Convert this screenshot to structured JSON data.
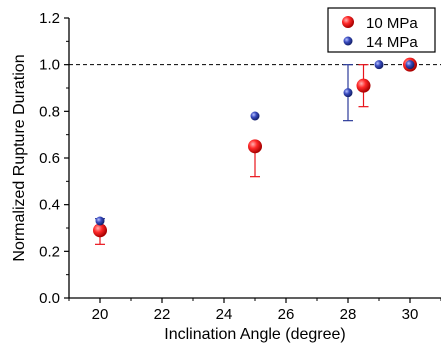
{
  "chart_data": {
    "type": "scatter",
    "xlabel": "Inclination Angle (degree)",
    "ylabel": "Normalized Rupture Duration",
    "xlim": [
      19,
      31
    ],
    "ylim": [
      0,
      1.2
    ],
    "x_ticks": [
      20,
      22,
      24,
      26,
      28,
      30
    ],
    "y_ticks": [
      0.0,
      0.2,
      0.4,
      0.6,
      0.8,
      1.0,
      1.2
    ],
    "x_tick_labels": [
      "20",
      "22",
      "24",
      "26",
      "28",
      "30"
    ],
    "y_tick_labels": [
      "0.0",
      "0.2",
      "0.4",
      "0.6",
      "0.8",
      "1.0",
      "1.2"
    ],
    "reference_line": {
      "y": 1.0,
      "style": "dashed"
    },
    "legend_position": "top-right",
    "series": [
      {
        "name": "10 MPa",
        "color": "#e8141c",
        "marker": "large-sphere",
        "points": [
          {
            "x": 20,
            "y": 0.29,
            "err_low": 0.23,
            "err_high": 0.31
          },
          {
            "x": 25,
            "y": 0.65,
            "err_low": 0.52,
            "err_high": 0.66
          },
          {
            "x": 28.5,
            "y": 0.91,
            "err_low": 0.82,
            "err_high": 1.0
          },
          {
            "x": 30,
            "y": 1.0,
            "err_low": 1.0,
            "err_high": 1.0
          }
        ]
      },
      {
        "name": "14 MPa",
        "color": "#2c3b9a",
        "marker": "small-sphere",
        "points": [
          {
            "x": 20,
            "y": 0.33,
            "err_low": 0.31,
            "err_high": 0.34
          },
          {
            "x": 25,
            "y": 0.78,
            "err_low": 0.78,
            "err_high": 0.78
          },
          {
            "x": 28,
            "y": 0.88,
            "err_low": 0.76,
            "err_high": 1.0
          },
          {
            "x": 29,
            "y": 1.0,
            "err_low": 1.0,
            "err_high": 1.0
          },
          {
            "x": 30,
            "y": 1.0,
            "err_low": 1.0,
            "err_high": 1.0
          }
        ]
      }
    ]
  }
}
